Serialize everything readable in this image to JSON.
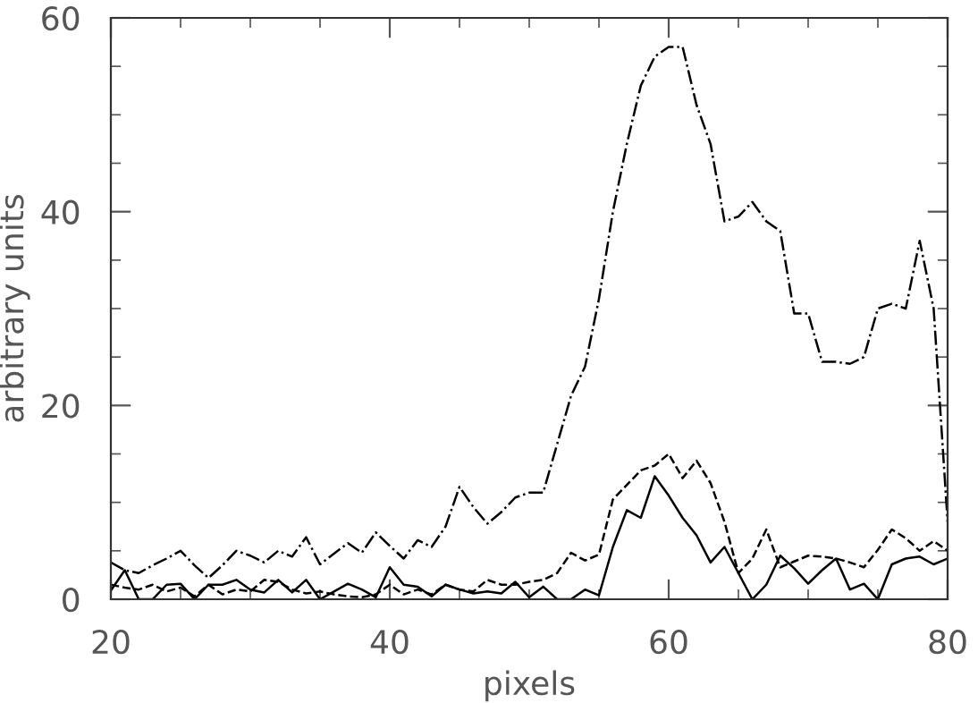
{
  "chart_data": {
    "type": "line",
    "xlabel": "pixels",
    "ylabel": "arbitrary units",
    "xlim": [
      20,
      80
    ],
    "ylim": [
      0,
      60
    ],
    "xticks": [
      20,
      40,
      60,
      80
    ],
    "yticks": [
      0,
      20,
      40,
      60
    ],
    "grid": false,
    "legend": false,
    "marker": "none",
    "x": [
      20,
      21,
      22,
      23,
      24,
      25,
      26,
      27,
      28,
      29,
      30,
      31,
      32,
      33,
      34,
      35,
      36,
      37,
      38,
      39,
      40,
      41,
      42,
      43,
      44,
      45,
      46,
      47,
      48,
      49,
      50,
      51,
      52,
      53,
      54,
      55,
      56,
      57,
      58,
      59,
      60,
      61,
      62,
      63,
      64,
      65,
      66,
      67,
      68,
      69,
      70,
      71,
      72,
      73,
      74,
      75,
      76,
      77,
      78,
      79,
      80
    ],
    "series": [
      {
        "color": "#000000",
        "line_style": "solid",
        "values": [
          0.9,
          3,
          0,
          0,
          1.5,
          1.6,
          0,
          1.5,
          1.5,
          2,
          1,
          0.7,
          2,
          0.7,
          2,
          0,
          0.8,
          1.6,
          1,
          0.2,
          3.3,
          1.5,
          1.3,
          0.3,
          1.5,
          1,
          0.6,
          0.8,
          0.6,
          1.8,
          0.2,
          1.3,
          0,
          0,
          1,
          0.4,
          5.4,
          9.2,
          8.4,
          12.7,
          10.7,
          8.4,
          6.6,
          3.8,
          5.4,
          2.7,
          0,
          1.5,
          4.5,
          3.2,
          1.6,
          3,
          4.2,
          1,
          1.6,
          0,
          3.6,
          4.2,
          4.4,
          3.6,
          4.2
        ]
      },
      {
        "color": "#000000",
        "line_style": "dashed",
        "values": [
          1.5,
          1.2,
          1,
          1.5,
          0.8,
          1.2,
          0.3,
          1.5,
          0.5,
          1,
          0.8,
          2,
          1.8,
          1,
          0.6,
          0.8,
          0.5,
          0.3,
          0.2,
          0.5,
          1.5,
          0.5,
          1,
          0.5,
          1.5,
          1,
          0.8,
          2,
          1.5,
          1.5,
          1.8,
          2,
          2.7,
          4.8,
          4,
          4.6,
          10.3,
          11.8,
          13.3,
          13.8,
          15,
          12.5,
          14.3,
          12,
          8,
          2.7,
          4.2,
          7.2,
          3.3,
          3.9,
          4.5,
          4.4,
          4.2,
          3.8,
          3.3,
          5.1,
          7.2,
          6.3,
          5,
          6,
          5
        ]
      },
      {
        "color": "#000000",
        "line_style": "dashdot",
        "values": [
          3.8,
          3,
          2.7,
          3.5,
          4.2,
          5,
          3.5,
          2.2,
          3.5,
          5,
          4.5,
          3.8,
          5,
          4.4,
          6.4,
          3.6,
          4.7,
          5.8,
          4.8,
          6.9,
          5.5,
          4.2,
          6.1,
          5.4,
          7.5,
          11.6,
          9.5,
          7.8,
          9,
          10.5,
          11,
          11,
          16,
          21,
          24,
          31,
          40,
          47,
          53,
          56,
          57,
          57,
          51,
          47,
          39,
          39.5,
          41,
          39,
          38,
          29.5,
          29.5,
          24.5,
          24.5,
          24.3,
          25,
          30,
          30.5,
          30,
          37,
          30,
          8
        ]
      }
    ]
  }
}
